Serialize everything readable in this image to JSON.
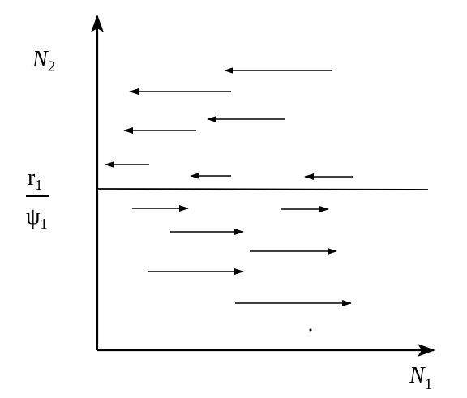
{
  "y_axis_label": {
    "base": "N",
    "sub": "2"
  },
  "x_axis_label": {
    "base": "N",
    "sub": "1"
  },
  "threshold_label": {
    "numerator": "r",
    "numerator_sub": "1",
    "denominator": "ψ",
    "denominator_sub": "1"
  }
}
